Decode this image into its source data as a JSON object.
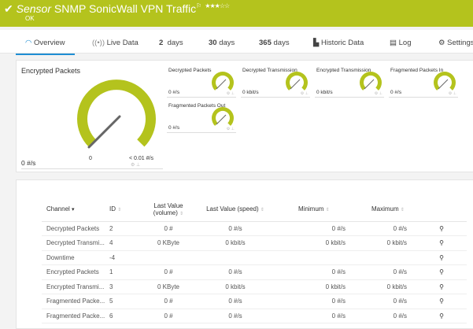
{
  "header": {
    "prefix": "Sensor",
    "title": "SNMP SonicWall VPN Traffic",
    "status": "OK",
    "priority_stars": "★★★☆☆",
    "accent": "#b4c31d"
  },
  "tabs": [
    {
      "label": "Overview",
      "icon": "gauge-icon"
    },
    {
      "label": "Live Data",
      "icon": "broadcast-icon"
    },
    {
      "num": "2",
      "label": "days"
    },
    {
      "num": "30",
      "label": "days"
    },
    {
      "num": "365",
      "label": "days"
    },
    {
      "label": "Historic Data",
      "icon": "chart-icon"
    },
    {
      "label": "Log",
      "icon": "log-icon"
    },
    {
      "label": "Settings",
      "icon": "gear-icon"
    }
  ],
  "big_gauge": {
    "title": "Encrypted Packets",
    "value": "0 #/s",
    "min": "0",
    "max": "< 0.01 #/s"
  },
  "small_gauges": [
    {
      "name": "Decrypted Packets",
      "value": "0 #/s"
    },
    {
      "name": "Decrypted Transmission",
      "value": "0 kbit/s"
    },
    {
      "name": "Encrypted Transmission",
      "value": "0 kbit/s"
    },
    {
      "name": "Fragmented Packets In",
      "value": "0 #/s"
    },
    {
      "name": "Fragmented Packets Out",
      "value": "0 #/s"
    }
  ],
  "table": {
    "headers": {
      "channel": "Channel",
      "id": "ID",
      "last_volume_1": "Last Value",
      "last_volume_2": "(volume)",
      "last_speed": "Last Value (speed)",
      "minimum": "Minimum",
      "maximum": "Maximum"
    },
    "rows": [
      {
        "channel": "Decrypted Packets",
        "id": "2",
        "volume": "0 #",
        "speed": "0 #/s",
        "min": "0 #/s",
        "max": "0 #/s"
      },
      {
        "channel": "Decrypted Transmi...",
        "id": "4",
        "volume": "0 KByte",
        "speed": "0 kbit/s",
        "min": "0 kbit/s",
        "max": "0 kbit/s"
      },
      {
        "channel": "Downtime",
        "id": "-4",
        "volume": "",
        "speed": "",
        "min": "",
        "max": ""
      },
      {
        "channel": "Encrypted Packets",
        "id": "1",
        "volume": "0 #",
        "speed": "0 #/s",
        "min": "0 #/s",
        "max": "0 #/s"
      },
      {
        "channel": "Encrypted Transmi...",
        "id": "3",
        "volume": "0 KByte",
        "speed": "0 kbit/s",
        "min": "0 kbit/s",
        "max": "0 kbit/s"
      },
      {
        "channel": "Fragmented Packe...",
        "id": "5",
        "volume": "0 #",
        "speed": "0 #/s",
        "min": "0 #/s",
        "max": "0 #/s"
      },
      {
        "channel": "Fragmented Packe...",
        "id": "6",
        "volume": "0 #",
        "speed": "0 #/s",
        "min": "0 #/s",
        "max": "0 #/s"
      }
    ]
  }
}
